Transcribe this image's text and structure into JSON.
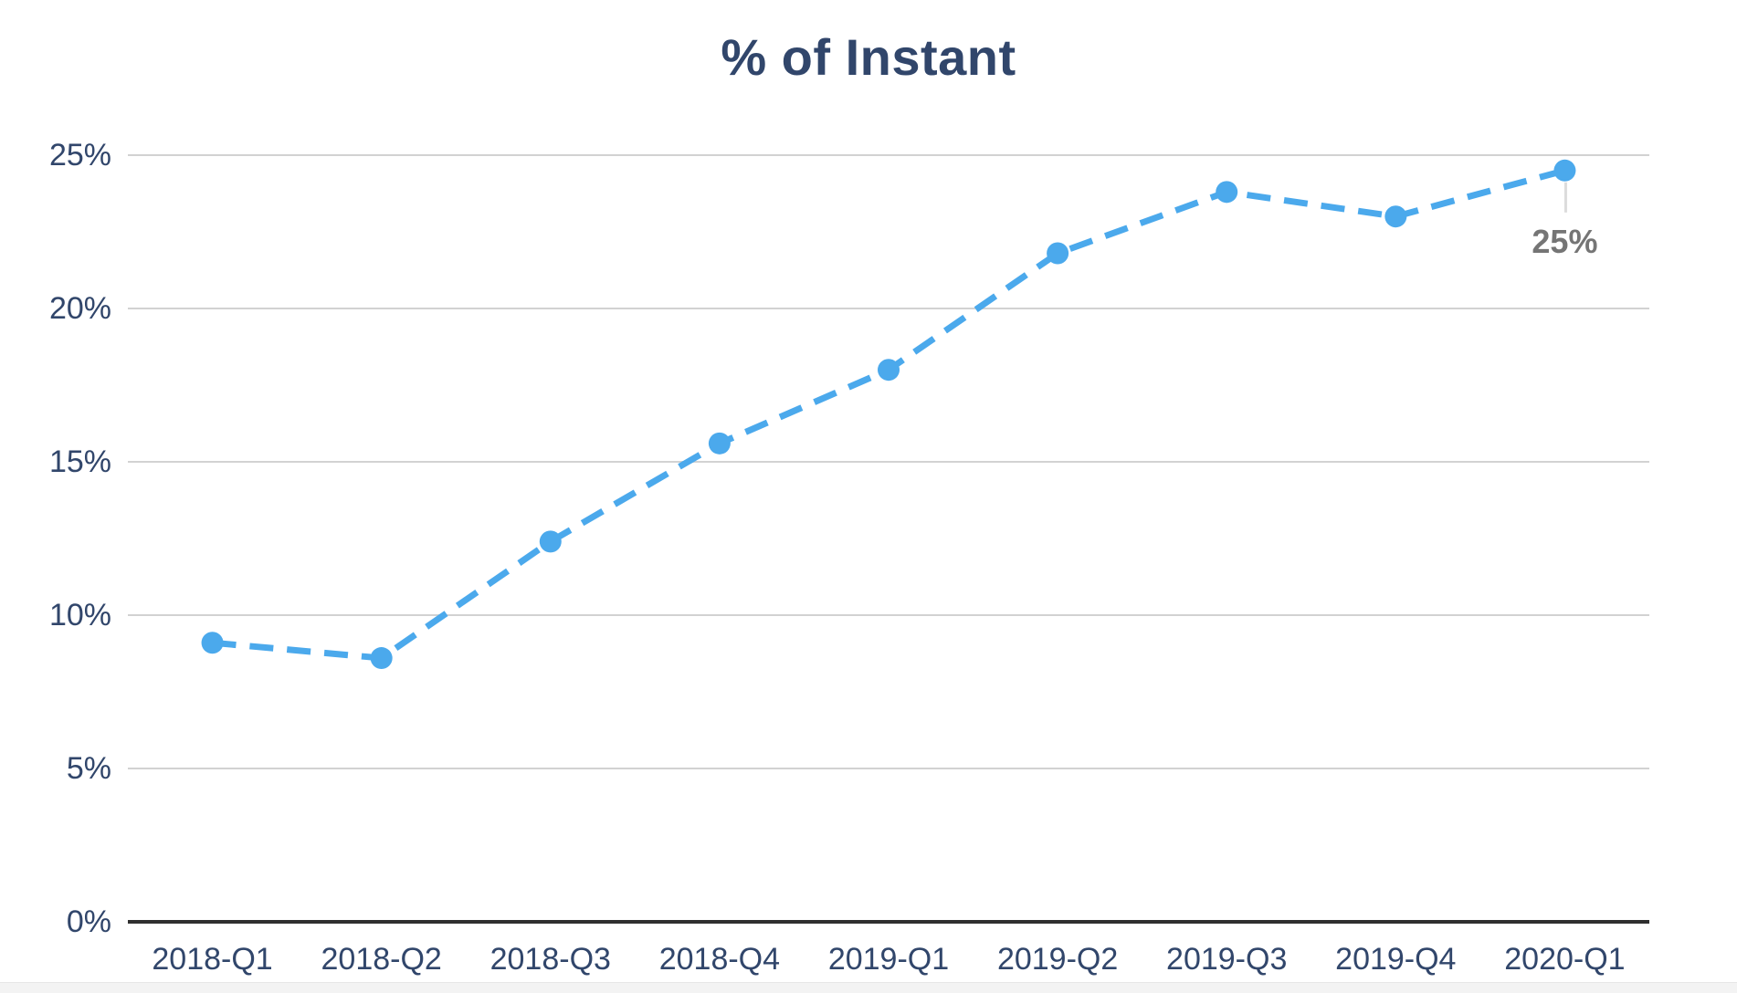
{
  "chart_data": {
    "type": "line",
    "title": "% of Instant",
    "categories": [
      "2018-Q1",
      "2018-Q2",
      "2018-Q3",
      "2018-Q4",
      "2019-Q1",
      "2019-Q2",
      "2019-Q3",
      "2019-Q4",
      "2020-Q1"
    ],
    "series": [
      {
        "name": "% of Instant",
        "values": [
          9.1,
          8.6,
          12.4,
          15.6,
          18.0,
          21.8,
          23.8,
          23.0,
          24.5
        ]
      }
    ],
    "y_ticks": [
      {
        "label": "0%",
        "value": 0
      },
      {
        "label": "5%",
        "value": 5
      },
      {
        "label": "10%",
        "value": 10
      },
      {
        "label": "15%",
        "value": 15
      },
      {
        "label": "20%",
        "value": 20
      },
      {
        "label": "25%",
        "value": 25
      }
    ],
    "ylim": [
      0,
      25
    ],
    "xlabel": "",
    "ylabel": "",
    "grid": "horizontal",
    "legend": "none",
    "line_style": "dashed",
    "marker": "circle",
    "annotation": {
      "text": "25%",
      "point": "2020-Q1",
      "point_index": 8
    },
    "colors": {
      "line": "#4BA9EC",
      "marker": "#4BA9EC",
      "title_text": "#31466B",
      "tick_text": "#31466B",
      "grid_line": "#D2D2D2",
      "axis_line": "#2F2F2F",
      "annotation_text": "#757575",
      "annotation_connector": "#DCDCDC",
      "bottom_strip": "#F3F3F3",
      "background": "#FFFFFF"
    }
  }
}
